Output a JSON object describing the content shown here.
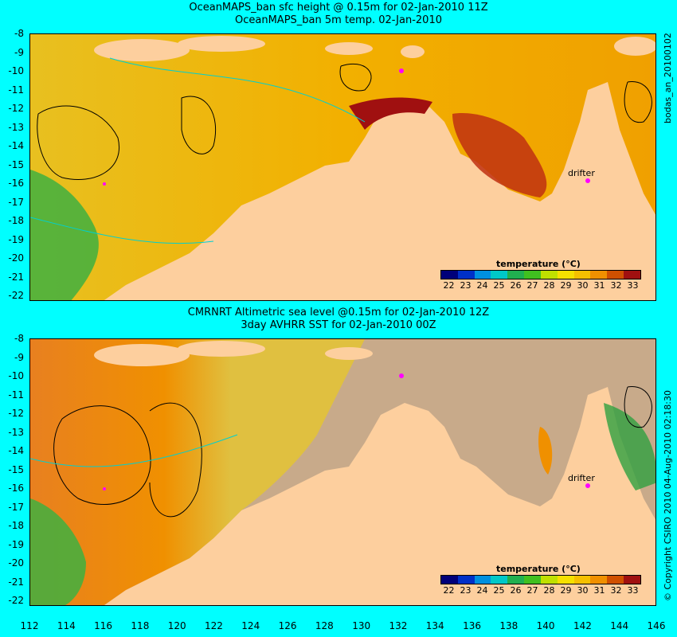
{
  "top": {
    "title_line1": "OceanMAPS_ban sfc height @ 0.15m for 02-Jan-2010 11Z",
    "title_line2": "OceanMAPS_ban 5m temp. 02-Jan-2010",
    "side_label": "bodas_an_20100102",
    "drifter_label": "drifter",
    "legend_title": "temperature (°C)"
  },
  "bottom": {
    "title_line1": "CMRNRT Altimetric sea level  @0.15m  for 02-Jan-2010 12Z",
    "title_line2": "3day AVHRR SST for 02-Jan-2010 00Z",
    "side_label": "© Copyright CSIRO 2010   04-Aug-2010 02:18:30",
    "drifter_label": "drifter",
    "legend_title": "temperature (°C)"
  },
  "y_ticks": [
    "-8",
    "-9",
    "-10",
    "-11",
    "-12",
    "-13",
    "-14",
    "-15",
    "-16",
    "-17",
    "-18",
    "-19",
    "-20",
    "-21",
    "-22"
  ],
  "x_ticks": [
    "112",
    "114",
    "116",
    "118",
    "120",
    "122",
    "124",
    "126",
    "128",
    "130",
    "132",
    "134",
    "136",
    "138",
    "140",
    "142",
    "144",
    "146"
  ],
  "legend_ticks": [
    "22",
    "23",
    "24",
    "25",
    "26",
    "27",
    "28",
    "29",
    "30",
    "31",
    "32",
    "33"
  ],
  "colors": {
    "background": "#00ffff",
    "land": "#fdcf9e",
    "no_data": "#c8aa8a",
    "warm": "#f5b800",
    "hot": "#b01010",
    "cool": "#2ab04a",
    "drifter": "#ff00ff",
    "colorbar": [
      "#00007a",
      "#0030c8",
      "#0090e0",
      "#00c8c8",
      "#20b050",
      "#40c020",
      "#c0e000",
      "#f5e000",
      "#f5c000",
      "#f09000",
      "#d05000",
      "#a01010"
    ]
  }
}
